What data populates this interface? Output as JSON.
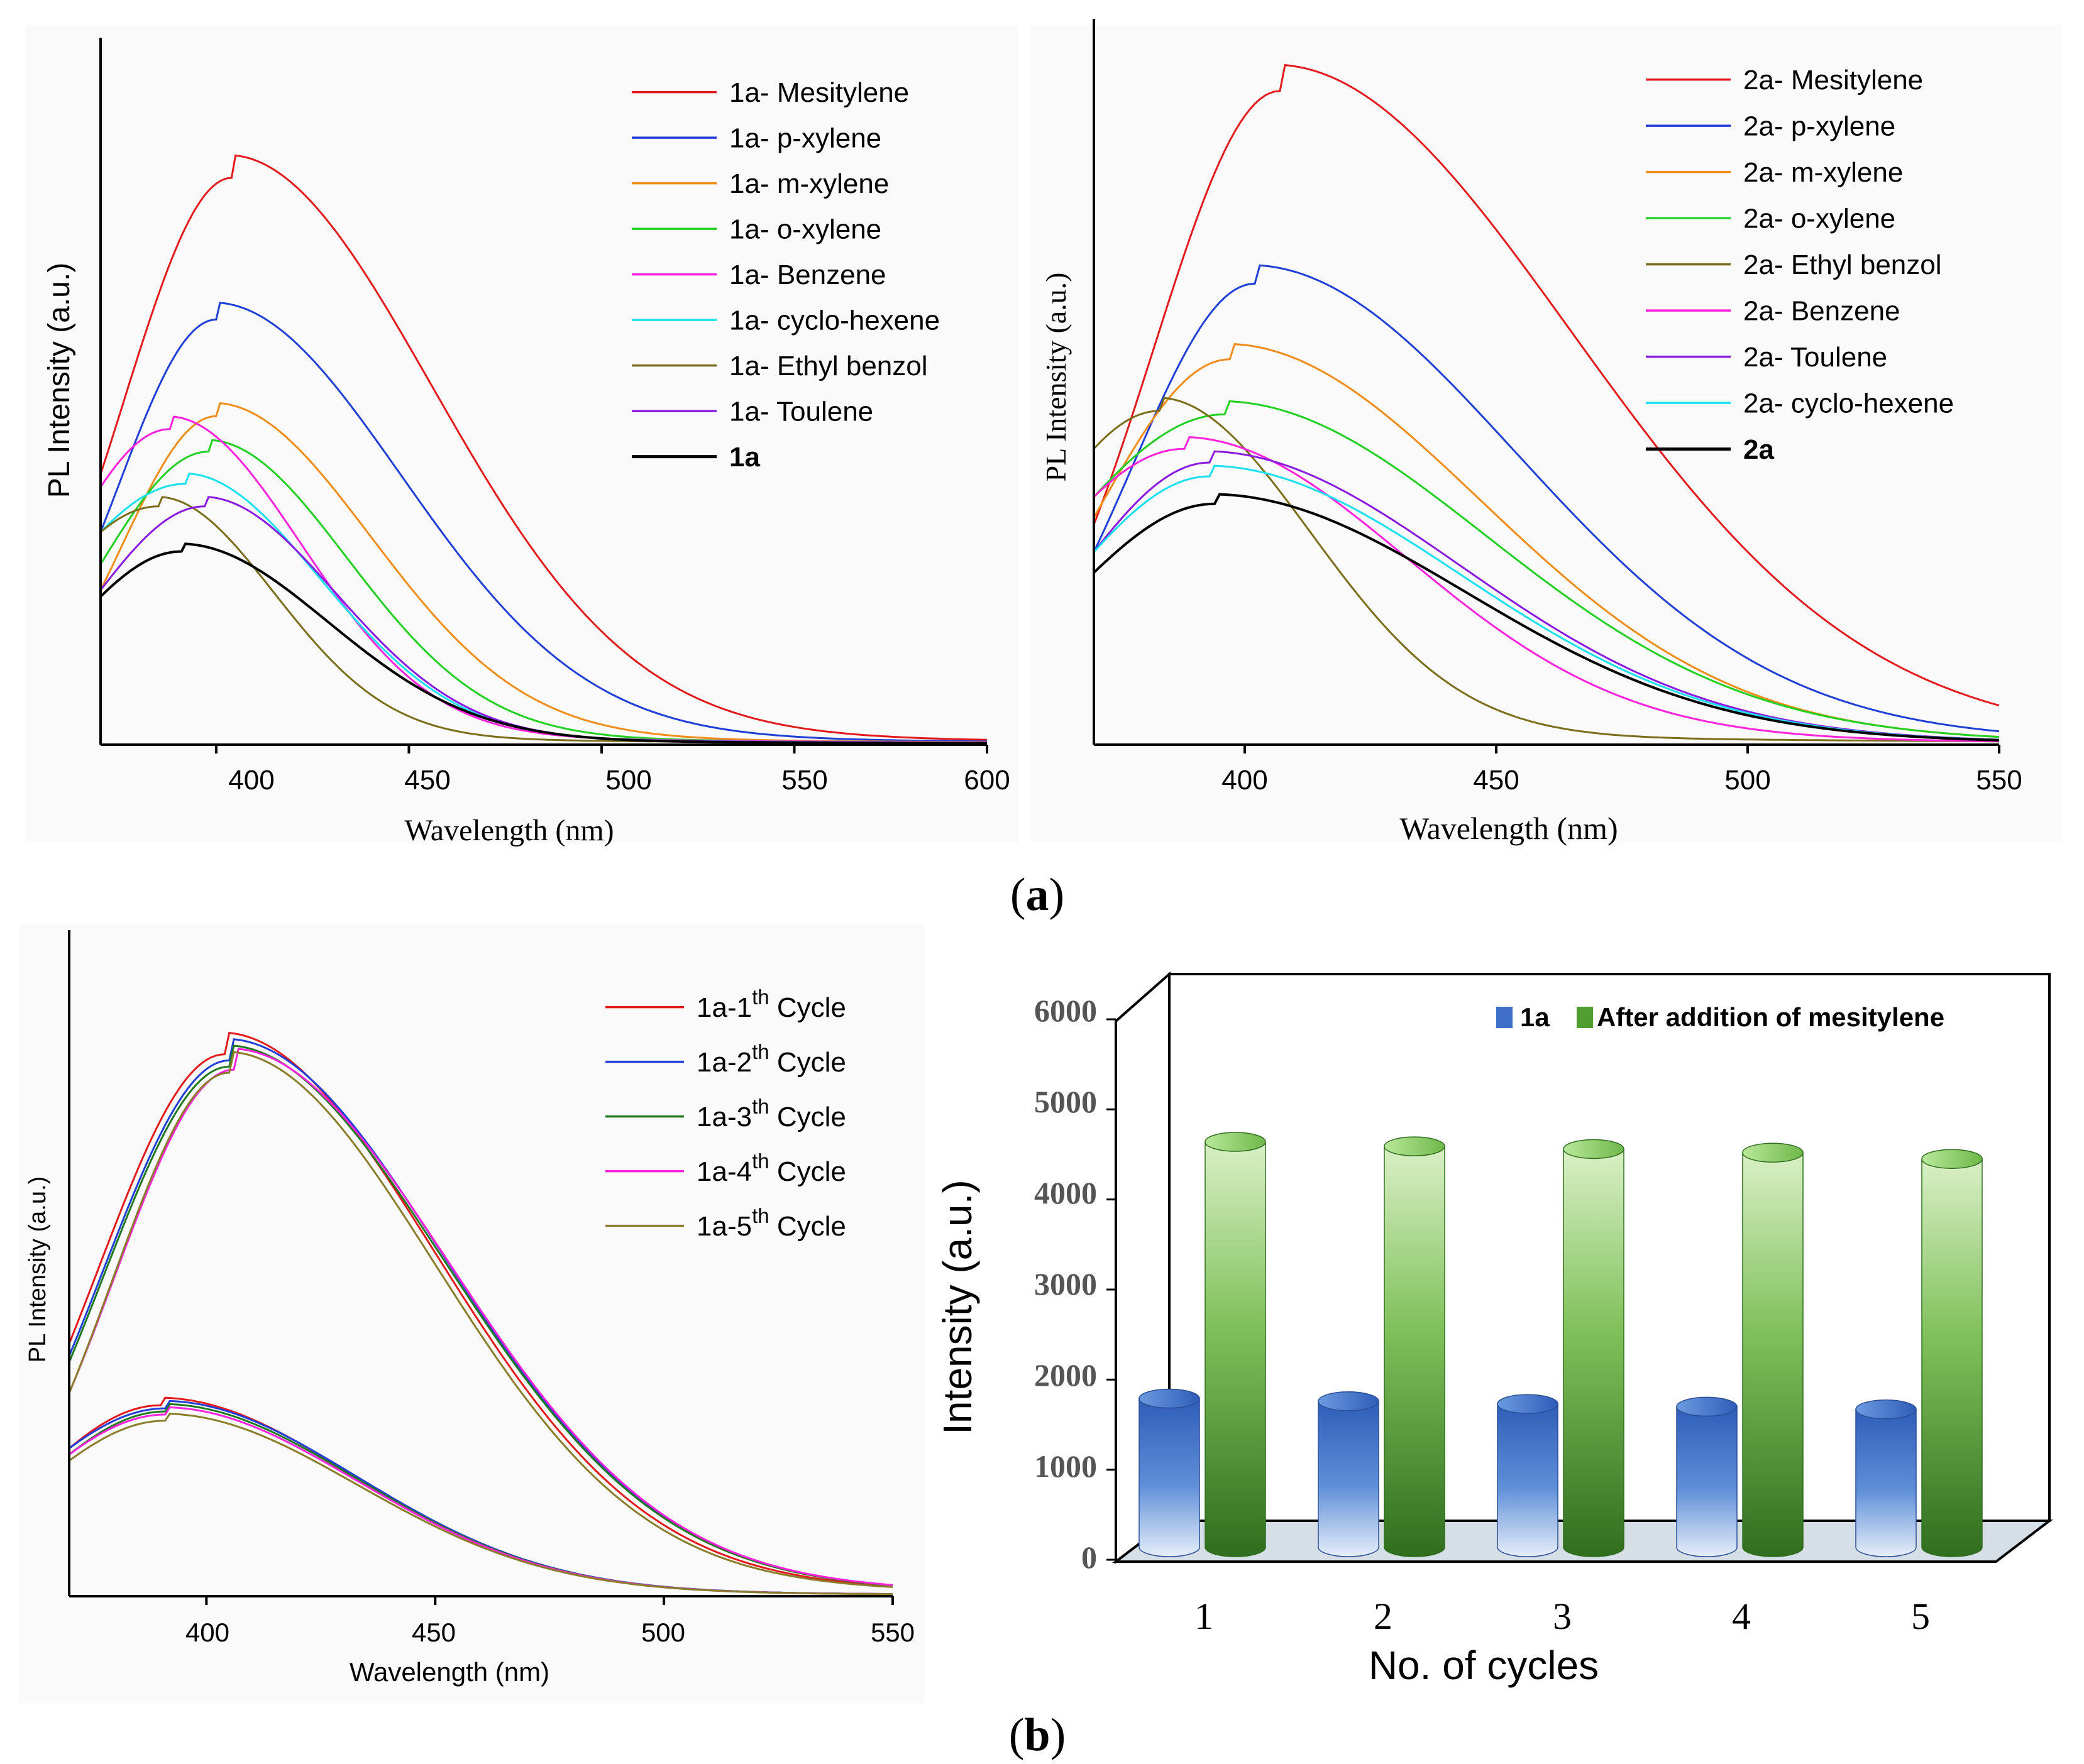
{
  "figure": {
    "caption_a_label": "a",
    "caption_b_label": "b"
  },
  "chart_data": [
    {
      "id": "plot1",
      "type": "line",
      "ylabel": "PL Intensity (a.u.)",
      "xlabel": "Wavelength (nm)",
      "xlim": [
        370,
        600
      ],
      "ylim": [
        0,
        100
      ],
      "xticks": [
        400,
        450,
        500,
        550,
        600
      ],
      "legend_position": "top-right",
      "series": [
        {
          "name": "1a- Mesitylene",
          "color": "#e31a1c",
          "bold": false,
          "peak": 404,
          "height": 88,
          "w1": 25,
          "w2": 52,
          "start": 42
        },
        {
          "name": "1a- p-xylene",
          "color": "#1f3fd6",
          "bold": false,
          "peak": 400,
          "height": 66,
          "w1": 22,
          "w2": 48,
          "start": 33
        },
        {
          "name": "1a- m-xylene",
          "color": "#f08c1a",
          "bold": false,
          "peak": 400,
          "height": 51,
          "w1": 18,
          "w2": 40,
          "start": 24
        },
        {
          "name": "1a- o-xylene",
          "color": "#22d022",
          "bold": false,
          "peak": 398,
          "height": 45.5,
          "w1": 20,
          "w2": 36,
          "start": 28
        },
        {
          "name": "1a- Benzene",
          "color": "#ff22dd",
          "bold": false,
          "peak": 388,
          "height": 49,
          "w1": 18,
          "w2": 34,
          "start": 40
        },
        {
          "name": "1a- cyclo-hexene",
          "color": "#1ae0f0",
          "bold": false,
          "peak": 392,
          "height": 40.5,
          "w1": 20,
          "w2": 35,
          "start": 33
        },
        {
          "name": "1a- Ethyl benzol",
          "color": "#7a6e1a",
          "bold": false,
          "peak": 385,
          "height": 37,
          "w1": 20,
          "w2": 30,
          "start": 33
        },
        {
          "name": "1a- Toulene",
          "color": "#8a1adf",
          "bold": false,
          "peak": 397,
          "height": 37,
          "w1": 20,
          "w2": 34,
          "start": 24
        },
        {
          "name": "1a",
          "color": "#000000",
          "bold": true,
          "peak": 391,
          "height": 30,
          "w1": 18,
          "w2": 38,
          "start": 23
        }
      ]
    },
    {
      "id": "plot2",
      "type": "line",
      "ylabel": "PL Intensity (a.u.)",
      "xlabel": "Wavelength (nm)",
      "xlim": [
        370,
        550
      ],
      "ylim": [
        0,
        100
      ],
      "xticks": [
        400,
        450,
        500,
        550
      ],
      "legend_position": "top-right",
      "series": [
        {
          "name": "2a- Mesitylene",
          "color": "#e31a1c",
          "bold": false,
          "peak": 407,
          "height": 95,
          "w1": 28,
          "w2": 58,
          "start": 32
        },
        {
          "name": "2a- p-xylene",
          "color": "#1f3fd6",
          "bold": false,
          "peak": 402,
          "height": 67,
          "w1": 26,
          "w2": 52,
          "start": 28
        },
        {
          "name": "2a- m-xylene",
          "color": "#f08c1a",
          "bold": false,
          "peak": 397,
          "height": 56,
          "w1": 22,
          "w2": 50,
          "start": 33
        },
        {
          "name": "2a- o-xylene",
          "color": "#22d022",
          "bold": false,
          "peak": 396,
          "height": 48,
          "w1": 24,
          "w2": 52,
          "start": 36
        },
        {
          "name": "2a- Ethyl benzol",
          "color": "#7a6e1a",
          "bold": false,
          "peak": 383,
          "height": 48.5,
          "w1": 20,
          "w2": 30,
          "start": 43
        },
        {
          "name": "2a- Benzene",
          "color": "#ff22dd",
          "bold": false,
          "peak": 388,
          "height": 43,
          "w1": 22,
          "w2": 44,
          "start": 36
        },
        {
          "name": "2a- Toulene",
          "color": "#8a1adf",
          "bold": false,
          "peak": 393,
          "height": 41,
          "w1": 22,
          "w2": 50,
          "start": 28
        },
        {
          "name": "2a- cyclo-hexene",
          "color": "#1ae0f0",
          "bold": false,
          "peak": 393,
          "height": 39,
          "w1": 24,
          "w2": 50,
          "start": 28
        },
        {
          "name": "2a",
          "color": "#000000",
          "bold": true,
          "peak": 394,
          "height": 35,
          "w1": 24,
          "w2": 50,
          "start": 25
        }
      ]
    },
    {
      "id": "plot3",
      "type": "line",
      "ylabel": "PL Intensity (a.u.)",
      "xlabel": "Wavelength (nm)",
      "xlim": [
        370,
        550
      ],
      "ylim": [
        0,
        100
      ],
      "xticks": [
        400,
        450,
        500,
        550
      ],
      "legend_position": "top-right",
      "series": [
        {
          "name": "1a-1",
          "sup": "th",
          "suffix": " Cycle",
          "color": "#e31a1c"
        },
        {
          "name": "1a-2",
          "sup": "th",
          "suffix": " Cycle",
          "color": "#1f3fd6"
        },
        {
          "name": "1a-3",
          "sup": "th",
          "suffix": " Cycle",
          "color": "#1f7a1f"
        },
        {
          "name": "1a-4",
          "sup": "th",
          "suffix": " Cycle",
          "color": "#ff22dd"
        },
        {
          "name": "1a-5",
          "sup": "th",
          "suffix": " Cycle",
          "color": "#8a7d2a"
        }
      ],
      "high_curves": [
        {
          "peak": 404,
          "height": 88,
          "w1": 19,
          "w2": 46,
          "start": 41
        },
        {
          "peak": 405,
          "height": 87,
          "w1": 20,
          "w2": 47,
          "start": 39
        },
        {
          "peak": 405,
          "height": 86,
          "w1": 20,
          "w2": 47,
          "start": 38
        },
        {
          "peak": 406,
          "height": 85.5,
          "w1": 20,
          "w2": 47,
          "start": 33
        },
        {
          "peak": 405,
          "height": 85,
          "w1": 20,
          "w2": 45,
          "start": 33
        }
      ],
      "low_curves": [
        {
          "peak": 390,
          "height": 31,
          "w1": 18,
          "w2": 42,
          "start": 24
        },
        {
          "peak": 391,
          "height": 30.5,
          "w1": 18,
          "w2": 42,
          "start": 24
        },
        {
          "peak": 391,
          "height": 30,
          "w1": 18,
          "w2": 42,
          "start": 23
        },
        {
          "peak": 391,
          "height": 29.5,
          "w1": 18,
          "w2": 42,
          "start": 23
        },
        {
          "peak": 391,
          "height": 28.5,
          "w1": 18,
          "w2": 42,
          "start": 22
        }
      ]
    },
    {
      "id": "plot4",
      "type": "bar",
      "ylabel": "Intensity (a.u.)",
      "xlabel": "No. of cycles",
      "categories": [
        "1",
        "2",
        "3",
        "4",
        "5"
      ],
      "ylim": [
        0,
        6000
      ],
      "yticks": [
        0,
        1000,
        2000,
        3000,
        4000,
        5000,
        6000
      ],
      "legend_position": "top-right",
      "series": [
        {
          "name": "1a",
          "values": [
            1650,
            1620,
            1590,
            1560,
            1530
          ],
          "color": "#3f6fc6"
        },
        {
          "name": "After addition of mesitylene",
          "values": [
            4500,
            4450,
            4420,
            4380,
            4310
          ],
          "color": "#4f9e2f"
        }
      ]
    }
  ]
}
